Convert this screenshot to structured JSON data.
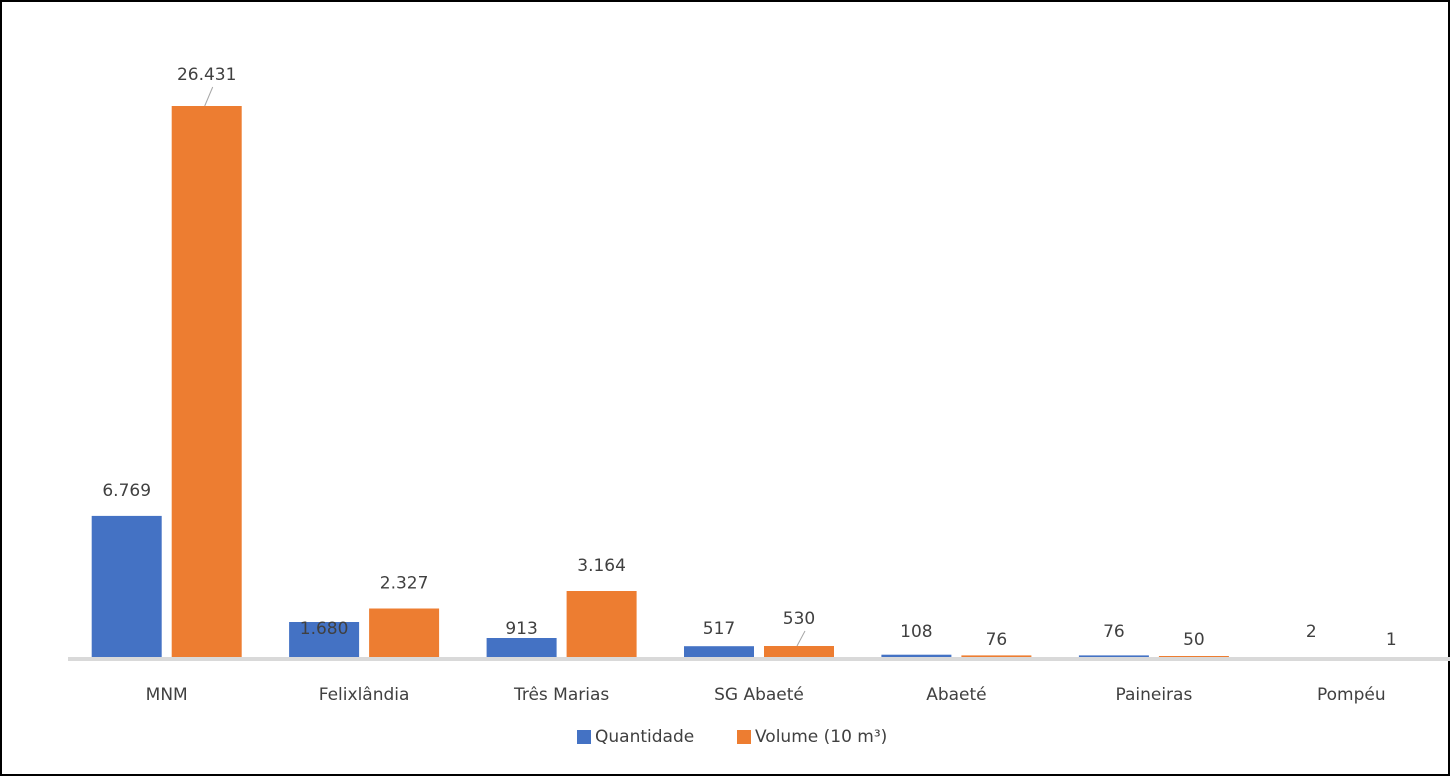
{
  "chart_data": {
    "type": "bar",
    "title": "",
    "xlabel": "",
    "ylabel": "",
    "categories": [
      "MNM",
      "Felixlândia",
      "Três Marias",
      "SG Abaeté",
      "Abaeté",
      "Paineiras",
      "Pompéu"
    ],
    "series": [
      {
        "name": "Quantidade",
        "color": "#4472C4",
        "values": [
          6769,
          1680,
          913,
          517,
          108,
          76,
          2
        ],
        "labels": [
          "6.769",
          "1.680",
          "913",
          "517",
          "108",
          "76",
          "2"
        ]
      },
      {
        "name": "Volume (10 m³)",
        "color": "#ED7D31",
        "values": [
          26431,
          2327,
          3164,
          530,
          76,
          50,
          1
        ],
        "labels": [
          "26.431",
          "2.327",
          "3.164",
          "530",
          "76",
          "50",
          "1"
        ]
      }
    ],
    "ylim": [
      0,
      28000
    ],
    "grid": false,
    "legend_position": "bottom"
  }
}
